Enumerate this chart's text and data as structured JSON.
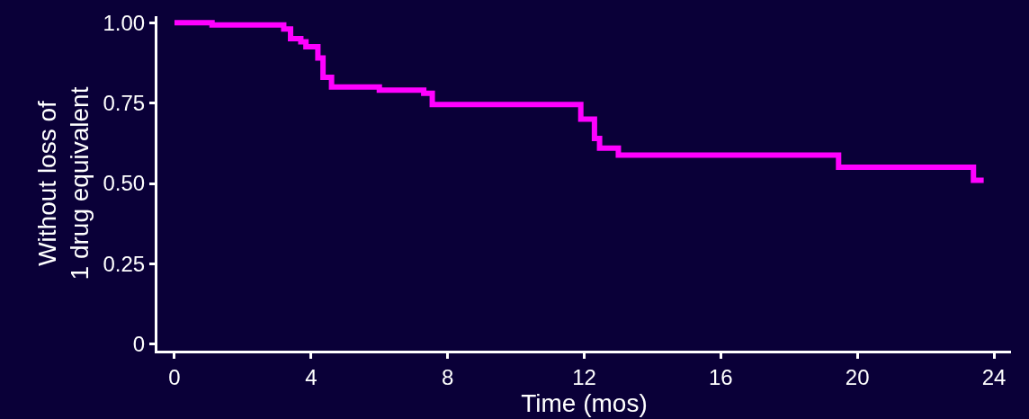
{
  "chart_data": {
    "type": "step",
    "xlabel": "Time (mos)",
    "ylabel": "Without loss of\n1 drug equivalent",
    "x": [
      0,
      1.1,
      3.2,
      3.4,
      3.7,
      3.85,
      4.2,
      4.35,
      4.6,
      6.0,
      7.3,
      7.55,
      11.9,
      12.3,
      12.45,
      13.0,
      19.45,
      23.4,
      23.7
    ],
    "values": [
      1.0,
      0.993,
      0.98,
      0.95,
      0.94,
      0.925,
      0.89,
      0.83,
      0.8,
      0.79,
      0.78,
      0.745,
      0.7,
      0.64,
      0.61,
      0.588,
      0.55,
      0.51,
      0.51
    ],
    "color": "#ff00ff",
    "xlim": [
      -0.5,
      24.5
    ],
    "xticks": [
      0,
      4,
      8,
      12,
      16,
      20,
      24
    ],
    "ylim": [
      -0.02,
      1.02
    ],
    "yticks": [
      {
        "value": 0,
        "label": "0"
      },
      {
        "value": 0.25,
        "label": "0.25"
      },
      {
        "value": 0.5,
        "label": "0.50"
      },
      {
        "value": 0.75,
        "label": "0.75"
      },
      {
        "value": 1,
        "label": "1.00"
      }
    ],
    "grid": false,
    "legend": false
  }
}
